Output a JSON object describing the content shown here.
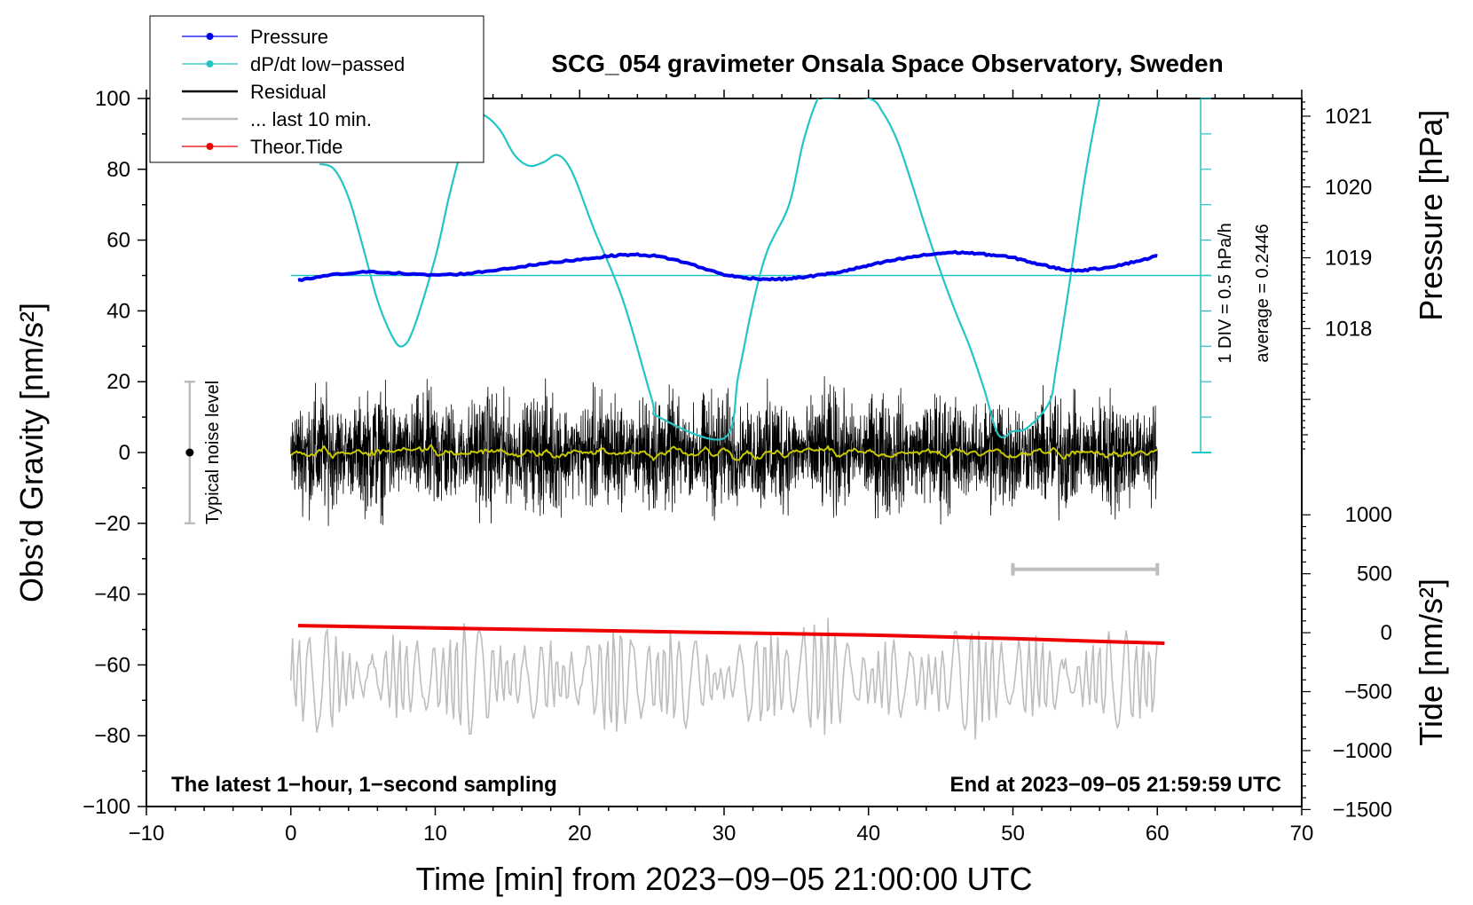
{
  "chart_data": {
    "type": "line",
    "title": "SCG_054 gravimeter Onsala Space Observatory, Sweden",
    "xlabel": "Time [min] from 2023−09−05 21:00:00 UTC",
    "ylabel_left": "Obs’d Gravity [nm/s²]",
    "ylabel_right_pressure": "Pressure [hPa]",
    "ylabel_right_tide": "Tide [nm/s²]",
    "xlim": [
      -10,
      70
    ],
    "ylim": [
      -100,
      100
    ],
    "x_ticks": [
      -10,
      0,
      10,
      20,
      30,
      40,
      50,
      60,
      70
    ],
    "x_tick_labels": [
      "−10",
      "0",
      "10",
      "20",
      "30",
      "40",
      "50",
      "60",
      "70"
    ],
    "y_ticks": [
      -100,
      -80,
      -60,
      -40,
      -20,
      0,
      20,
      40,
      60,
      80,
      100
    ],
    "y_tick_labels": [
      "−100",
      "−80",
      "−60",
      "−40",
      "−20",
      "0",
      "20",
      "40",
      "60",
      "80",
      "100"
    ],
    "pressure_ticks": [
      1018,
      1019,
      1020,
      1021
    ],
    "pressure_tick_labels": [
      "1018",
      "1019",
      "1020",
      "1021"
    ],
    "tide_ticks": [
      1000,
      500,
      0,
      -500,
      -1000,
      -1500
    ],
    "tide_tick_labels": [
      "1000",
      "500",
      "0",
      "−500",
      "−1000",
      "−1500"
    ],
    "legend": [
      {
        "label": "Pressure",
        "color": "#0000ee",
        "marker": true
      },
      {
        "label": "dP/dt low−passed",
        "color": "#22c4c4",
        "marker": true
      },
      {
        "label": "Residual",
        "color": "#000000",
        "marker": false
      },
      {
        "label": "... last 10 min.",
        "color": "#bdbdbd",
        "marker": false
      },
      {
        "label": "Theor.Tide",
        "color": "#ee0000",
        "marker": true
      }
    ],
    "colors": {
      "pressure": "#0000ee",
      "dpdt": "#22c4c4",
      "residual": "#000000",
      "residual_smooth": "#c8c800",
      "last10": "#bdbdbd",
      "tide": "#ee0000",
      "noise_bar": "#bdbdbd"
    },
    "series": {
      "pressure": {
        "name": "Pressure",
        "x": [
          0.5,
          3,
          6,
          9,
          12,
          15,
          18,
          21,
          23,
          25,
          27,
          30,
          32,
          34,
          36,
          38,
          40,
          42,
          44,
          46,
          48,
          50,
          52,
          54,
          56,
          58,
          60
        ],
        "y": [
          48.5,
          50.2,
          51,
          50.2,
          50.5,
          52,
          53.6,
          55,
          55.8,
          55.6,
          54,
          50.3,
          49.2,
          49,
          49.8,
          51,
          52.8,
          54.5,
          55.8,
          56.5,
          56,
          55,
          53,
          51.5,
          52,
          53.5,
          55.5
        ]
      },
      "dpdt": {
        "name": "dP/dt low−passed",
        "baseline": 50,
        "x": [
          2,
          3,
          4,
          5,
          6,
          7,
          7.7,
          8.5,
          10,
          11,
          12,
          12.8,
          13.5,
          14.5,
          15.5,
          16.5,
          17.5,
          18.5,
          19.5,
          21,
          23,
          25,
          25.5,
          30,
          31,
          32,
          33,
          34.5,
          35.5,
          36.5,
          37,
          40,
          41,
          42,
          43,
          44,
          45,
          46,
          47,
          48,
          49,
          50,
          51,
          52.5,
          53,
          54,
          55,
          56
        ],
        "y": [
          81.5,
          80,
          72,
          58,
          43,
          33,
          30,
          35,
          55,
          73,
          88,
          95,
          95,
          91,
          84,
          81,
          82,
          84,
          79,
          63,
          43,
          15,
          10,
          4,
          22,
          42,
          57,
          70,
          88,
          100,
          100,
          100,
          96,
          88,
          76,
          63,
          51,
          40,
          30,
          18,
          5,
          6,
          7,
          14,
          24,
          50,
          78,
          100
        ]
      },
      "residual": {
        "name": "Residual",
        "x_start": 0,
        "x_end": 60,
        "amplitude_min": -30,
        "amplitude_max": 30
      },
      "last10": {
        "name": "... last 10 min.",
        "offset": -64,
        "x_start": 0,
        "x_end": 60
      },
      "tide": {
        "name": "Theor.Tide",
        "x": [
          0.5,
          10,
          20,
          30,
          40,
          50,
          55,
          60.5
        ],
        "y": [
          60,
          40,
          20,
          0,
          -20,
          -50,
          -70,
          -90
        ]
      }
    },
    "pressure_scale": {
      "value_at_gravity_0": 1016.25,
      "hpa_per_gravity_unit": 0.05
    },
    "tide_scale": {
      "gravity_at_0": -50.9,
      "gravity_per_500": 16.65
    },
    "noise_level": {
      "label": "Typical noise level",
      "x": -7,
      "y_center": 0,
      "y_min": -20,
      "y_max": 20
    },
    "last10_range": {
      "x_start": 50,
      "x_end": 60,
      "y": -33
    },
    "dpdt_scale": {
      "label": "1 DIV = 0.5 hPa/h",
      "average_label": "average = 0.2446",
      "x": 63
    },
    "footer_left": "The latest 1−hour, 1−second sampling",
    "footer_right": "End at 2023−09−05 21:59:59 UTC"
  }
}
